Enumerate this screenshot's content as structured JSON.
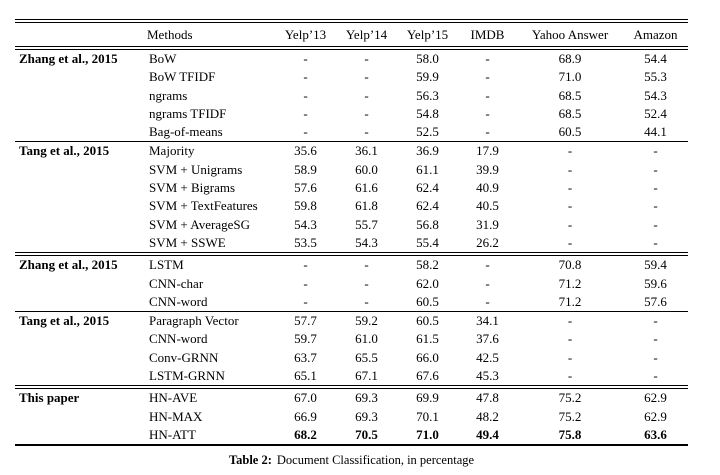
{
  "page": {
    "background": "#ffffff",
    "text_color": "#000000"
  },
  "table": {
    "columns": [
      "Methods",
      "Yelp’13",
      "Yelp’14",
      "Yelp’15",
      "IMDB",
      "Yahoo Answer",
      "Amazon"
    ],
    "groups": [
      {
        "label": "Zhang et al., 2015",
        "rule_above": "none",
        "rows": [
          {
            "method": "BoW",
            "values": [
              "-",
              "-",
              "58.0",
              "-",
              "68.9",
              "54.4"
            ]
          },
          {
            "method": "BoW TFIDF",
            "values": [
              "-",
              "-",
              "59.9",
              "-",
              "71.0",
              "55.3"
            ]
          },
          {
            "method": "ngrams",
            "values": [
              "-",
              "-",
              "56.3",
              "-",
              "68.5",
              "54.3"
            ]
          },
          {
            "method": "ngrams TFIDF",
            "values": [
              "-",
              "-",
              "54.8",
              "-",
              "68.5",
              "52.4"
            ]
          },
          {
            "method": "Bag-of-means",
            "values": [
              "-",
              "-",
              "52.5",
              "-",
              "60.5",
              "44.1"
            ]
          }
        ]
      },
      {
        "label": "Tang et al., 2015",
        "rule_above": "single",
        "rows": [
          {
            "method": "Majority",
            "values": [
              "35.6",
              "36.1",
              "36.9",
              "17.9",
              "-",
              "-"
            ]
          },
          {
            "method": "SVM + Unigrams",
            "values": [
              "58.9",
              "60.0",
              "61.1",
              "39.9",
              "-",
              "-"
            ]
          },
          {
            "method": "SVM + Bigrams",
            "values": [
              "57.6",
              "61.6",
              "62.4",
              "40.9",
              "-",
              "-"
            ]
          },
          {
            "method": "SVM + TextFeatures",
            "values": [
              "59.8",
              "61.8",
              "62.4",
              "40.5",
              "-",
              "-"
            ]
          },
          {
            "method": "SVM + AverageSG",
            "values": [
              "54.3",
              "55.7",
              "56.8",
              "31.9",
              "-",
              "-"
            ]
          },
          {
            "method": "SVM + SSWE",
            "values": [
              "53.5",
              "54.3",
              "55.4",
              "26.2",
              "-",
              "-"
            ]
          }
        ]
      },
      {
        "label": "Zhang et al., 2015",
        "rule_above": "double",
        "rows": [
          {
            "method": "LSTM",
            "values": [
              "-",
              "-",
              "58.2",
              "-",
              "70.8",
              "59.4"
            ]
          },
          {
            "method": "CNN-char",
            "values": [
              "-",
              "-",
              "62.0",
              "-",
              "71.2",
              "59.6"
            ]
          },
          {
            "method": "CNN-word",
            "values": [
              "-",
              "-",
              "60.5",
              "-",
              "71.2",
              "57.6"
            ]
          }
        ]
      },
      {
        "label": "Tang et al., 2015",
        "rule_above": "single",
        "rows": [
          {
            "method": "Paragraph Vector",
            "values": [
              "57.7",
              "59.2",
              "60.5",
              "34.1",
              "-",
              "-"
            ]
          },
          {
            "method": "CNN-word",
            "values": [
              "59.7",
              "61.0",
              "61.5",
              "37.6",
              "-",
              "-"
            ]
          },
          {
            "method": "Conv-GRNN",
            "values": [
              "63.7",
              "65.5",
              "66.0",
              "42.5",
              "-",
              "-"
            ]
          },
          {
            "method": "LSTM-GRNN",
            "values": [
              "65.1",
              "67.1",
              "67.6",
              "45.3",
              "-",
              "-"
            ]
          }
        ]
      },
      {
        "label": "This paper",
        "rule_above": "double",
        "rows": [
          {
            "method": "HN-AVE",
            "values": [
              "67.0",
              "69.3",
              "69.9",
              "47.8",
              "75.2",
              "62.9"
            ]
          },
          {
            "method": "HN-MAX",
            "values": [
              "66.9",
              "69.3",
              "70.1",
              "48.2",
              "75.2",
              "62.9"
            ]
          },
          {
            "method": "HN-ATT",
            "values": [
              "68.2",
              "70.5",
              "71.0",
              "49.4",
              "75.8",
              "63.6"
            ],
            "bold_values": true
          }
        ]
      }
    ],
    "caption": {
      "label": "Table 2:",
      "text": "Document Classification, in percentage"
    }
  }
}
